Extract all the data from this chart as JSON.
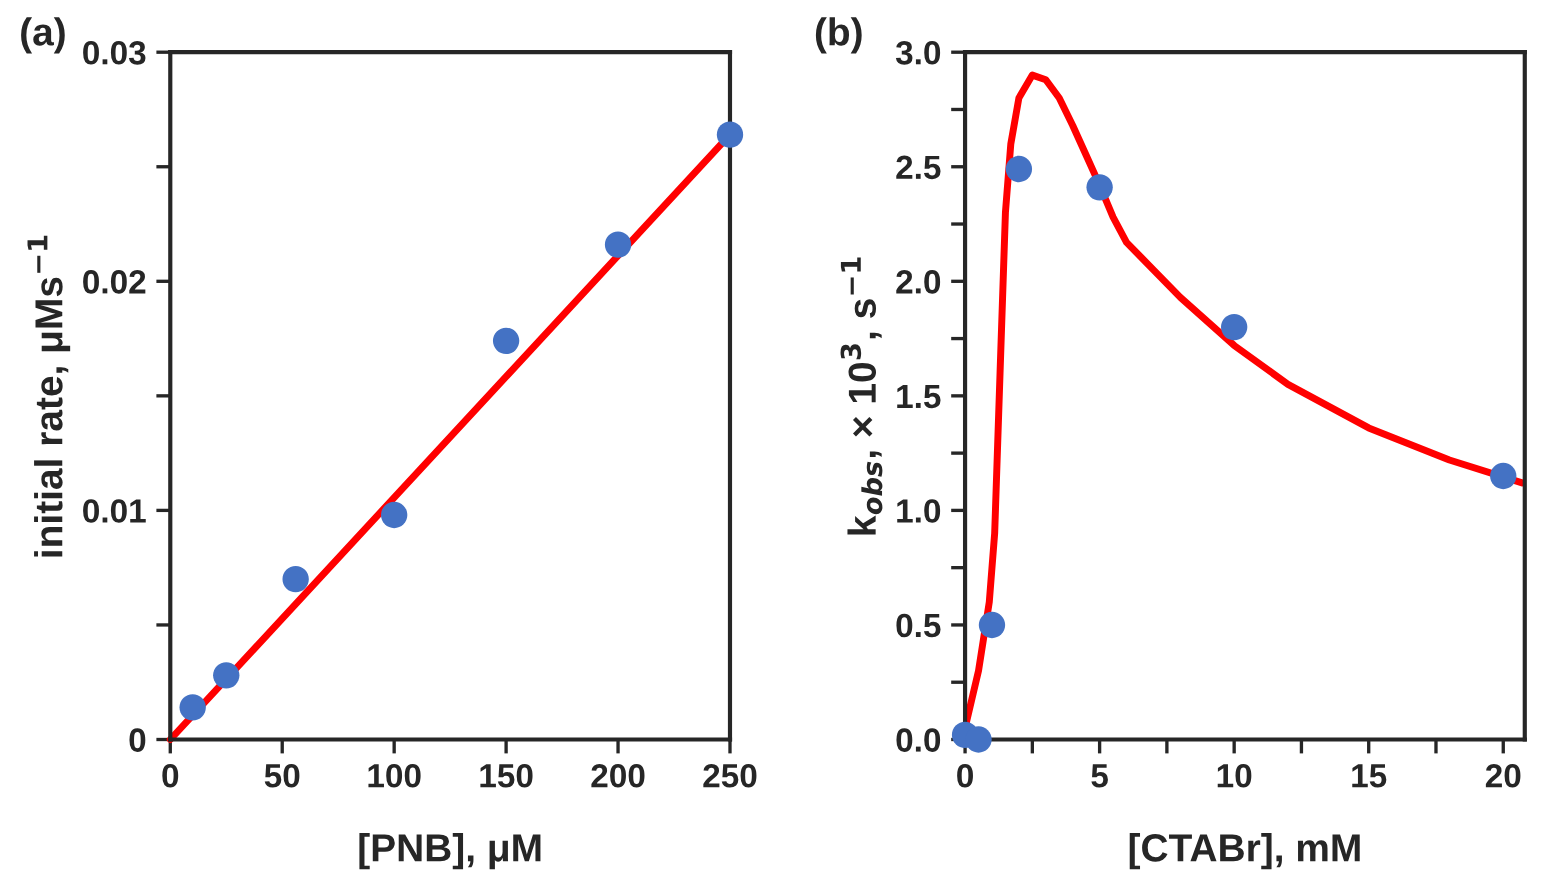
{
  "chart_data": [
    {
      "type": "scatter",
      "title": "(a)",
      "xlabel": "[PNB], μM",
      "ylabel": "initial rate, μMs$^{−1}$",
      "xlim": [
        0,
        250
      ],
      "ylim": [
        0,
        0.03
      ],
      "xticks": [
        0,
        50,
        100,
        150,
        200,
        250
      ],
      "yticks": [
        0,
        {
          "value": 0.005,
          "label": null
        },
        0.01,
        {
          "value": 0.015,
          "label": null
        },
        0.02,
        {
          "value": 0.025,
          "label": null
        },
        0.03
      ],
      "grid": false,
      "legend": false,
      "series": [
        {
          "marker": "circle",
          "color": "#4472c4",
          "x": [
            10,
            25,
            56,
            100,
            150,
            200,
            250
          ],
          "values": [
            0.0014,
            0.0028,
            0.007,
            0.0098,
            0.0174,
            0.0216,
            0.0264
          ]
        },
        {
          "type": "line",
          "color": "#ff0000",
          "x": [
            0,
            250
          ],
          "values": [
            0,
            0.0264
          ]
        }
      ]
    },
    {
      "type": "scatter",
      "title": "(b)",
      "xlabel": "[CTABr], mM",
      "ylabel": "k$_{obs}$, × 10$^{3}$, s$^{−1}$",
      "xlim": [
        0,
        20.8
      ],
      "ylim": [
        0,
        3.0
      ],
      "xticks": [
        0,
        {
          "value": 2.5,
          "label": null
        },
        5,
        {
          "value": 7.5,
          "label": null
        },
        10,
        {
          "value": 12.5,
          "label": null
        },
        15,
        {
          "value": 17.5,
          "label": null
        },
        20
      ],
      "yticks": [
        {
          "value": 0,
          "label": "0.0"
        },
        {
          "value": 0.25,
          "label": null
        },
        {
          "value": 0.5,
          "label": "0.5"
        },
        {
          "value": 0.75,
          "label": null
        },
        {
          "value": 1.0,
          "label": "1.0"
        },
        {
          "value": 1.25,
          "label": null
        },
        {
          "value": 1.5,
          "label": "1.5"
        },
        {
          "value": 1.75,
          "label": null
        },
        {
          "value": 2.0,
          "label": "2.0"
        },
        {
          "value": 2.25,
          "label": null
        },
        {
          "value": 2.5,
          "label": "2.5"
        },
        {
          "value": 2.75,
          "label": null
        },
        {
          "value": 3.0,
          "label": "3.0"
        }
      ],
      "grid": false,
      "legend": false,
      "series": [
        {
          "marker": "circle",
          "color": "#4472c4",
          "x": [
            0,
            0.5,
            1,
            2,
            5,
            10,
            20
          ],
          "values": [
            0.02,
            0.0,
            0.5,
            2.49,
            2.41,
            1.8,
            1.15
          ]
        },
        {
          "type": "line",
          "color": "#ff0000",
          "x": [
            0,
            0.5,
            0.9,
            1.1,
            1.3,
            1.5,
            1.7,
            2.0,
            2.5,
            3.0,
            3.5,
            4.0,
            4.5,
            5.0,
            5.5,
            6.0,
            7.0,
            8.0,
            10.0,
            12.0,
            15.0,
            18.0,
            20.7
          ],
          "values": [
            0.05,
            0.3,
            0.6,
            0.9,
            1.6,
            2.3,
            2.6,
            2.8,
            2.9,
            2.88,
            2.8,
            2.68,
            2.55,
            2.42,
            2.28,
            2.17,
            2.05,
            1.93,
            1.72,
            1.55,
            1.36,
            1.22,
            1.12
          ]
        }
      ]
    }
  ]
}
